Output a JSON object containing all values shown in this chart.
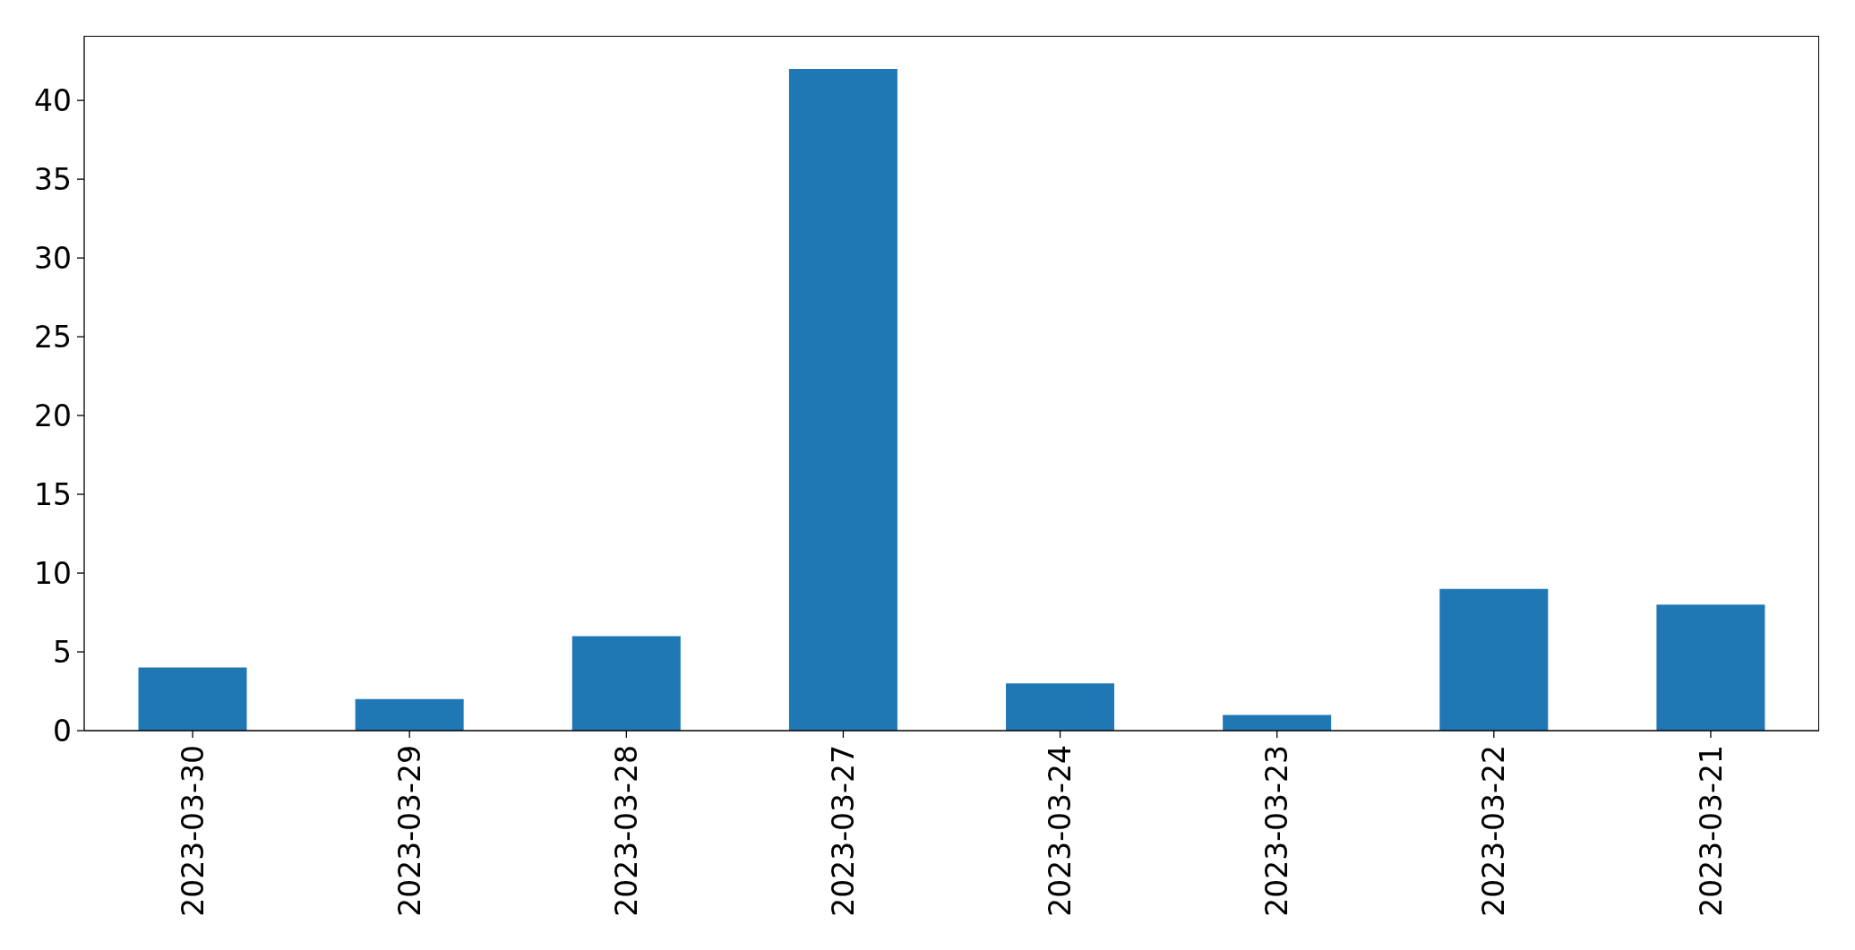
{
  "chart_data": {
    "type": "bar",
    "categories": [
      "2023-03-30",
      "2023-03-29",
      "2023-03-28",
      "2023-03-27",
      "2023-03-24",
      "2023-03-23",
      "2023-03-22",
      "2023-03-21"
    ],
    "values": [
      4,
      2,
      6,
      42,
      3,
      1,
      9,
      8
    ],
    "color": "#1f77b4",
    "ylim": [
      0,
      44.1
    ],
    "yticks": [
      0,
      5,
      10,
      15,
      20,
      25,
      30,
      35,
      40
    ]
  }
}
